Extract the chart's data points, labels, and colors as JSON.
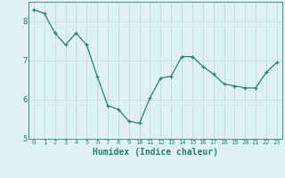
{
  "x": [
    0,
    1,
    2,
    3,
    4,
    5,
    6,
    7,
    8,
    9,
    10,
    11,
    12,
    13,
    14,
    15,
    16,
    17,
    18,
    19,
    20,
    21,
    22,
    23
  ],
  "y": [
    8.3,
    8.2,
    7.7,
    7.4,
    7.7,
    7.4,
    6.6,
    5.85,
    5.75,
    5.45,
    5.4,
    6.05,
    6.55,
    6.6,
    7.1,
    7.1,
    6.85,
    6.65,
    6.4,
    6.35,
    6.3,
    6.3,
    6.7,
    6.95
  ],
  "xlabel": "Humidex (Indice chaleur)",
  "ylim": [
    5,
    8.5
  ],
  "xlim": [
    -0.5,
    23.5
  ],
  "yticks": [
    5,
    6,
    7,
    8
  ],
  "xticks": [
    0,
    1,
    2,
    3,
    4,
    5,
    6,
    7,
    8,
    9,
    10,
    11,
    12,
    13,
    14,
    15,
    16,
    17,
    18,
    19,
    20,
    21,
    22,
    23
  ],
  "line_color": "#2e7d6e",
  "marker": "+",
  "marker_size": 3,
  "bg_color": "#dff2f2",
  "grid_color": "#c0dede",
  "xlabel_color": "#2e7d6e",
  "tick_color": "#2e7d6e",
  "tick_fontsize": 6,
  "xlabel_fontsize": 7
}
